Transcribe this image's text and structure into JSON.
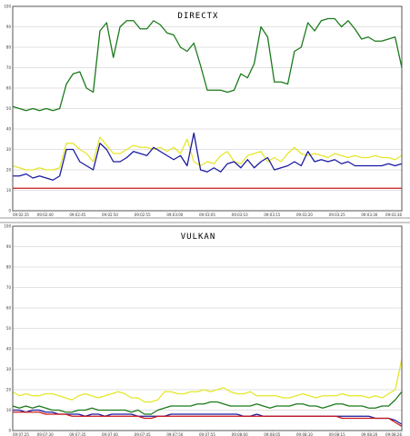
{
  "chart_data": [
    {
      "type": "line",
      "title": "DIRECTX",
      "ylim": [
        0,
        100
      ],
      "yticks": [
        0,
        10,
        20,
        30,
        40,
        50,
        60,
        70,
        80,
        90,
        100
      ],
      "grid": true,
      "legend": "none",
      "xticks": [
        "09:02:35",
        "09:02:40",
        "09:02:45",
        "09:02:50",
        "09:02:55",
        "09:03:00",
        "09:03:05",
        "09:03:10",
        "09:03:15",
        "09:03:20",
        "09:03:25",
        "09:03:30",
        "09:03:36"
      ],
      "series": [
        {
          "color": "#1a7a1a",
          "values": [
            51,
            50,
            49,
            50,
            49,
            50,
            49,
            50,
            62,
            67,
            68,
            60,
            58,
            88,
            92,
            75,
            90,
            93,
            93,
            89,
            89,
            93,
            91,
            87,
            86,
            80,
            78,
            82,
            71,
            59,
            59,
            59,
            58,
            59,
            67,
            65,
            72,
            90,
            85,
            63,
            63,
            62,
            78,
            80,
            92,
            88,
            93,
            94,
            94,
            90,
            93,
            89,
            84,
            85,
            83,
            83,
            84,
            85,
            70
          ]
        },
        {
          "color": "#e6e62a",
          "values": [
            22,
            21,
            20,
            20,
            21,
            20,
            20,
            21,
            33,
            33,
            30,
            28,
            24,
            36,
            32,
            28,
            28,
            30,
            32,
            31,
            31,
            30,
            31,
            29,
            31,
            28,
            35,
            24,
            22,
            24,
            23,
            27,
            29,
            24,
            23,
            27,
            28,
            29,
            24,
            26,
            24,
            28,
            31,
            28,
            27,
            28,
            27,
            26,
            28,
            27,
            26,
            27,
            26,
            26,
            27,
            26,
            26,
            25,
            27
          ]
        },
        {
          "color": "#1a1aa0",
          "values": [
            17,
            17,
            18,
            16,
            17,
            16,
            15,
            17,
            30,
            30,
            24,
            22,
            20,
            33,
            30,
            24,
            24,
            26,
            29,
            28,
            27,
            31,
            29,
            27,
            25,
            27,
            22,
            38,
            20,
            19,
            21,
            19,
            23,
            24,
            21,
            25,
            21,
            24,
            26,
            20,
            21,
            22,
            24,
            22,
            29,
            24,
            25,
            24,
            25,
            23,
            24,
            22,
            22,
            22,
            22,
            22,
            23,
            22,
            23
          ]
        },
        {
          "color": "#cc1a1a",
          "values": [
            11,
            11,
            11,
            11,
            11,
            11,
            11,
            11,
            11,
            11,
            11,
            11,
            11,
            11,
            11,
            11,
            11,
            11,
            11,
            11,
            11,
            11,
            11,
            11,
            11,
            11,
            11,
            11,
            11,
            11,
            11,
            11,
            11,
            11,
            11,
            11,
            11,
            11,
            11,
            11,
            11,
            11,
            11,
            11,
            11,
            11,
            11,
            11,
            11,
            11,
            11,
            11,
            11,
            11,
            11,
            11,
            11,
            11,
            11
          ]
        }
      ]
    },
    {
      "type": "line",
      "title": "VULKAN",
      "ylim": [
        0,
        100
      ],
      "yticks": [
        0,
        10,
        20,
        30,
        40,
        50,
        60,
        70,
        80,
        90,
        100
      ],
      "grid": true,
      "legend": "none",
      "xticks": [
        "09:07:25",
        "09:07:30",
        "09:07:35",
        "09:07:40",
        "09:07:45",
        "09:07:50",
        "09:07:55",
        "09:08:00",
        "09:08:05",
        "09:08:10",
        "09:08:15",
        "09:08:20",
        "09:08:26"
      ],
      "series": [
        {
          "color": "#e6e62a",
          "values": [
            19,
            17,
            18,
            17,
            17,
            18,
            18,
            17,
            16,
            15,
            17,
            18,
            17,
            16,
            17,
            18,
            19,
            18,
            16,
            16,
            14,
            14,
            15,
            19,
            19,
            18,
            18,
            19,
            19,
            20,
            19,
            20,
            21,
            19,
            18,
            18,
            19,
            17,
            17,
            17,
            17,
            16,
            16,
            17,
            18,
            17,
            16,
            17,
            17,
            17,
            18,
            17,
            17,
            17,
            16,
            17,
            16,
            18,
            20,
            35
          ]
        },
        {
          "color": "#1a7a1a",
          "values": [
            12,
            11,
            12,
            11,
            12,
            11,
            10,
            10,
            9,
            9,
            10,
            10,
            11,
            10,
            10,
            10,
            10,
            10,
            9,
            10,
            8,
            8,
            10,
            11,
            12,
            12,
            12,
            12,
            13,
            13,
            14,
            14,
            13,
            12,
            12,
            12,
            12,
            13,
            12,
            11,
            12,
            12,
            12,
            13,
            13,
            12,
            12,
            11,
            12,
            13,
            13,
            12,
            12,
            12,
            11,
            11,
            12,
            12,
            15,
            19
          ]
        },
        {
          "color": "#1a1aa0",
          "values": [
            10,
            10,
            9,
            10,
            10,
            9,
            9,
            8,
            8,
            8,
            8,
            7,
            8,
            8,
            7,
            8,
            8,
            8,
            8,
            7,
            7,
            7,
            7,
            7,
            8,
            8,
            8,
            8,
            8,
            8,
            8,
            8,
            8,
            8,
            8,
            7,
            7,
            8,
            7,
            7,
            7,
            7,
            7,
            7,
            7,
            7,
            7,
            7,
            7,
            7,
            7,
            7,
            7,
            7,
            7,
            6,
            6,
            6,
            5,
            3
          ]
        },
        {
          "color": "#cc1a1a",
          "values": [
            9,
            9,
            9,
            9,
            9,
            8,
            8,
            8,
            8,
            7,
            7,
            7,
            7,
            7,
            7,
            7,
            7,
            7,
            7,
            7,
            6,
            6,
            7,
            7,
            7,
            7,
            7,
            7,
            7,
            7,
            7,
            7,
            7,
            7,
            7,
            7,
            7,
            7,
            7,
            7,
            7,
            7,
            7,
            7,
            7,
            7,
            7,
            7,
            7,
            7,
            6,
            6,
            6,
            6,
            6,
            6,
            6,
            6,
            4,
            2
          ]
        }
      ]
    }
  ]
}
